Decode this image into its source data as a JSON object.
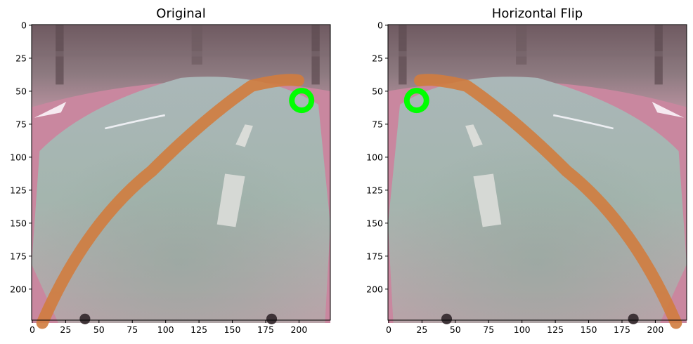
{
  "panels": [
    {
      "title": "Original",
      "x_ticks": [
        "0",
        "25",
        "50",
        "75",
        "100",
        "125",
        "150",
        "175",
        "200"
      ],
      "y_ticks": [
        "0",
        "25",
        "50",
        "75",
        "100",
        "125",
        "150",
        "175",
        "200"
      ],
      "marker": {
        "shape": "ring",
        "color": "#00ff00",
        "x": 202,
        "y": 57
      }
    },
    {
      "title": "Horizontal Flip",
      "x_ticks": [
        "0",
        "25",
        "50",
        "75",
        "100",
        "125",
        "150",
        "175",
        "200"
      ],
      "y_ticks": [
        "0",
        "25",
        "50",
        "75",
        "100",
        "125",
        "150",
        "175",
        "200"
      ],
      "marker": {
        "shape": "ring",
        "color": "#00ff00",
        "x": 21,
        "y": 57
      }
    }
  ],
  "image_extent": [
    224,
    224
  ]
}
